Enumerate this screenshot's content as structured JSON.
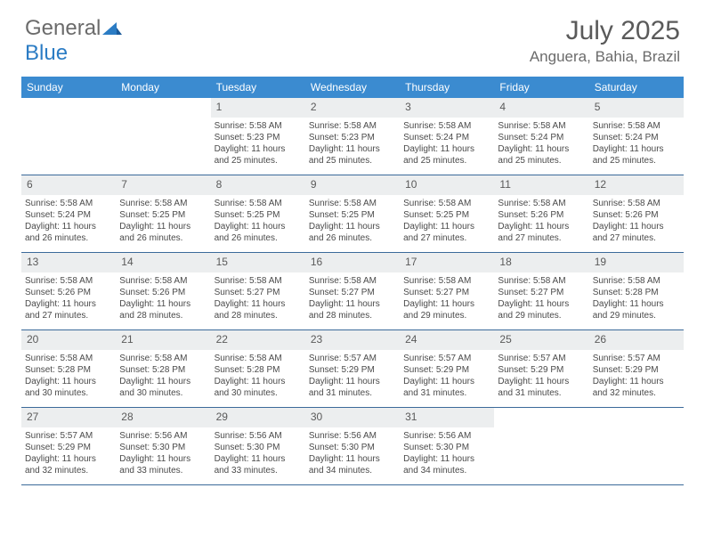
{
  "logo": {
    "text1": "General",
    "text2": "Blue"
  },
  "title": "July 2025",
  "location": "Anguera, Bahia, Brazil",
  "colors": {
    "header_bg": "#3b8bd0",
    "header_text": "#ffffff",
    "daynum_bg": "#eceeef",
    "text_body": "#4a4a4a",
    "text_title": "#5a5a5a",
    "week_border": "#3b6a9a",
    "logo_gray": "#6b6b6b",
    "logo_blue": "#2b7cc4"
  },
  "day_names": [
    "Sunday",
    "Monday",
    "Tuesday",
    "Wednesday",
    "Thursday",
    "Friday",
    "Saturday"
  ],
  "weeks": [
    [
      {
        "n": "",
        "sr": "",
        "ss": "",
        "dl": ""
      },
      {
        "n": "",
        "sr": "",
        "ss": "",
        "dl": ""
      },
      {
        "n": "1",
        "sr": "Sunrise: 5:58 AM",
        "ss": "Sunset: 5:23 PM",
        "dl": "Daylight: 11 hours and 25 minutes."
      },
      {
        "n": "2",
        "sr": "Sunrise: 5:58 AM",
        "ss": "Sunset: 5:23 PM",
        "dl": "Daylight: 11 hours and 25 minutes."
      },
      {
        "n": "3",
        "sr": "Sunrise: 5:58 AM",
        "ss": "Sunset: 5:24 PM",
        "dl": "Daylight: 11 hours and 25 minutes."
      },
      {
        "n": "4",
        "sr": "Sunrise: 5:58 AM",
        "ss": "Sunset: 5:24 PM",
        "dl": "Daylight: 11 hours and 25 minutes."
      },
      {
        "n": "5",
        "sr": "Sunrise: 5:58 AM",
        "ss": "Sunset: 5:24 PM",
        "dl": "Daylight: 11 hours and 25 minutes."
      }
    ],
    [
      {
        "n": "6",
        "sr": "Sunrise: 5:58 AM",
        "ss": "Sunset: 5:24 PM",
        "dl": "Daylight: 11 hours and 26 minutes."
      },
      {
        "n": "7",
        "sr": "Sunrise: 5:58 AM",
        "ss": "Sunset: 5:25 PM",
        "dl": "Daylight: 11 hours and 26 minutes."
      },
      {
        "n": "8",
        "sr": "Sunrise: 5:58 AM",
        "ss": "Sunset: 5:25 PM",
        "dl": "Daylight: 11 hours and 26 minutes."
      },
      {
        "n": "9",
        "sr": "Sunrise: 5:58 AM",
        "ss": "Sunset: 5:25 PM",
        "dl": "Daylight: 11 hours and 26 minutes."
      },
      {
        "n": "10",
        "sr": "Sunrise: 5:58 AM",
        "ss": "Sunset: 5:25 PM",
        "dl": "Daylight: 11 hours and 27 minutes."
      },
      {
        "n": "11",
        "sr": "Sunrise: 5:58 AM",
        "ss": "Sunset: 5:26 PM",
        "dl": "Daylight: 11 hours and 27 minutes."
      },
      {
        "n": "12",
        "sr": "Sunrise: 5:58 AM",
        "ss": "Sunset: 5:26 PM",
        "dl": "Daylight: 11 hours and 27 minutes."
      }
    ],
    [
      {
        "n": "13",
        "sr": "Sunrise: 5:58 AM",
        "ss": "Sunset: 5:26 PM",
        "dl": "Daylight: 11 hours and 27 minutes."
      },
      {
        "n": "14",
        "sr": "Sunrise: 5:58 AM",
        "ss": "Sunset: 5:26 PM",
        "dl": "Daylight: 11 hours and 28 minutes."
      },
      {
        "n": "15",
        "sr": "Sunrise: 5:58 AM",
        "ss": "Sunset: 5:27 PM",
        "dl": "Daylight: 11 hours and 28 minutes."
      },
      {
        "n": "16",
        "sr": "Sunrise: 5:58 AM",
        "ss": "Sunset: 5:27 PM",
        "dl": "Daylight: 11 hours and 28 minutes."
      },
      {
        "n": "17",
        "sr": "Sunrise: 5:58 AM",
        "ss": "Sunset: 5:27 PM",
        "dl": "Daylight: 11 hours and 29 minutes."
      },
      {
        "n": "18",
        "sr": "Sunrise: 5:58 AM",
        "ss": "Sunset: 5:27 PM",
        "dl": "Daylight: 11 hours and 29 minutes."
      },
      {
        "n": "19",
        "sr": "Sunrise: 5:58 AM",
        "ss": "Sunset: 5:28 PM",
        "dl": "Daylight: 11 hours and 29 minutes."
      }
    ],
    [
      {
        "n": "20",
        "sr": "Sunrise: 5:58 AM",
        "ss": "Sunset: 5:28 PM",
        "dl": "Daylight: 11 hours and 30 minutes."
      },
      {
        "n": "21",
        "sr": "Sunrise: 5:58 AM",
        "ss": "Sunset: 5:28 PM",
        "dl": "Daylight: 11 hours and 30 minutes."
      },
      {
        "n": "22",
        "sr": "Sunrise: 5:58 AM",
        "ss": "Sunset: 5:28 PM",
        "dl": "Daylight: 11 hours and 30 minutes."
      },
      {
        "n": "23",
        "sr": "Sunrise: 5:57 AM",
        "ss": "Sunset: 5:29 PM",
        "dl": "Daylight: 11 hours and 31 minutes."
      },
      {
        "n": "24",
        "sr": "Sunrise: 5:57 AM",
        "ss": "Sunset: 5:29 PM",
        "dl": "Daylight: 11 hours and 31 minutes."
      },
      {
        "n": "25",
        "sr": "Sunrise: 5:57 AM",
        "ss": "Sunset: 5:29 PM",
        "dl": "Daylight: 11 hours and 31 minutes."
      },
      {
        "n": "26",
        "sr": "Sunrise: 5:57 AM",
        "ss": "Sunset: 5:29 PM",
        "dl": "Daylight: 11 hours and 32 minutes."
      }
    ],
    [
      {
        "n": "27",
        "sr": "Sunrise: 5:57 AM",
        "ss": "Sunset: 5:29 PM",
        "dl": "Daylight: 11 hours and 32 minutes."
      },
      {
        "n": "28",
        "sr": "Sunrise: 5:56 AM",
        "ss": "Sunset: 5:30 PM",
        "dl": "Daylight: 11 hours and 33 minutes."
      },
      {
        "n": "29",
        "sr": "Sunrise: 5:56 AM",
        "ss": "Sunset: 5:30 PM",
        "dl": "Daylight: 11 hours and 33 minutes."
      },
      {
        "n": "30",
        "sr": "Sunrise: 5:56 AM",
        "ss": "Sunset: 5:30 PM",
        "dl": "Daylight: 11 hours and 34 minutes."
      },
      {
        "n": "31",
        "sr": "Sunrise: 5:56 AM",
        "ss": "Sunset: 5:30 PM",
        "dl": "Daylight: 11 hours and 34 minutes."
      },
      {
        "n": "",
        "sr": "",
        "ss": "",
        "dl": ""
      },
      {
        "n": "",
        "sr": "",
        "ss": "",
        "dl": ""
      }
    ]
  ]
}
